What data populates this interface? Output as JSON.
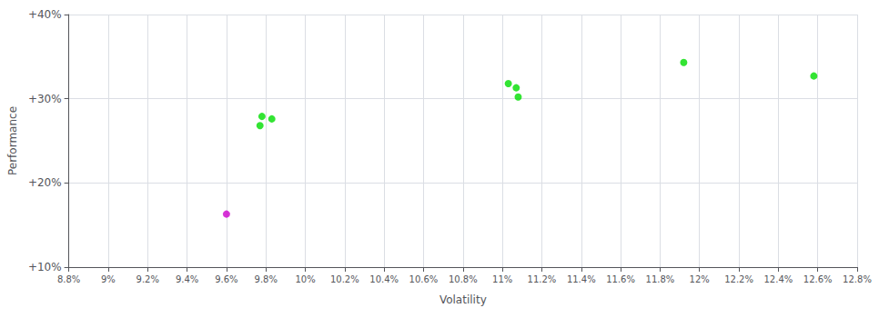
{
  "chart_data": {
    "type": "scatter",
    "xlabel": "Volatility",
    "ylabel": "Performance",
    "xlim": [
      0.088,
      0.128
    ],
    "ylim": [
      0.1,
      0.4
    ],
    "xticks": [
      {
        "value": 0.088,
        "label": "8.8%"
      },
      {
        "value": 0.09,
        "label": "9%"
      },
      {
        "value": 0.092,
        "label": "9.2%"
      },
      {
        "value": 0.094,
        "label": "9.4%"
      },
      {
        "value": 0.096,
        "label": "9.6%"
      },
      {
        "value": 0.098,
        "label": "9.8%"
      },
      {
        "value": 0.1,
        "label": "10%"
      },
      {
        "value": 0.102,
        "label": "10.2%"
      },
      {
        "value": 0.104,
        "label": "10.4%"
      },
      {
        "value": 0.106,
        "label": "10.6%"
      },
      {
        "value": 0.108,
        "label": "10.8%"
      },
      {
        "value": 0.11,
        "label": "11%"
      },
      {
        "value": 0.112,
        "label": "11.2%"
      },
      {
        "value": 0.114,
        "label": "11.4%"
      },
      {
        "value": 0.116,
        "label": "11.6%"
      },
      {
        "value": 0.118,
        "label": "11.8%"
      },
      {
        "value": 0.12,
        "label": "12%"
      },
      {
        "value": 0.122,
        "label": "12.2%"
      },
      {
        "value": 0.124,
        "label": "12.4%"
      },
      {
        "value": 0.126,
        "label": "12.6%"
      },
      {
        "value": 0.128,
        "label": "12.8%"
      }
    ],
    "yticks": [
      {
        "value": 0.1,
        "label": "+10%"
      },
      {
        "value": 0.2,
        "label": "+20%"
      },
      {
        "value": 0.3,
        "label": "+30%"
      },
      {
        "value": 0.4,
        "label": "+40%"
      }
    ],
    "grid": true,
    "series": [
      {
        "color": "#00dd00",
        "values": [
          [
            0.0978,
            0.279
          ],
          [
            0.0983,
            0.276
          ],
          [
            0.0977,
            0.268
          ],
          [
            0.1103,
            0.318
          ],
          [
            0.1107,
            0.313
          ],
          [
            0.1108,
            0.302
          ],
          [
            0.1192,
            0.343
          ],
          [
            0.1258,
            0.327
          ]
        ]
      },
      {
        "color": "#cc00cc",
        "values": [
          [
            0.096,
            0.163
          ]
        ]
      }
    ]
  }
}
